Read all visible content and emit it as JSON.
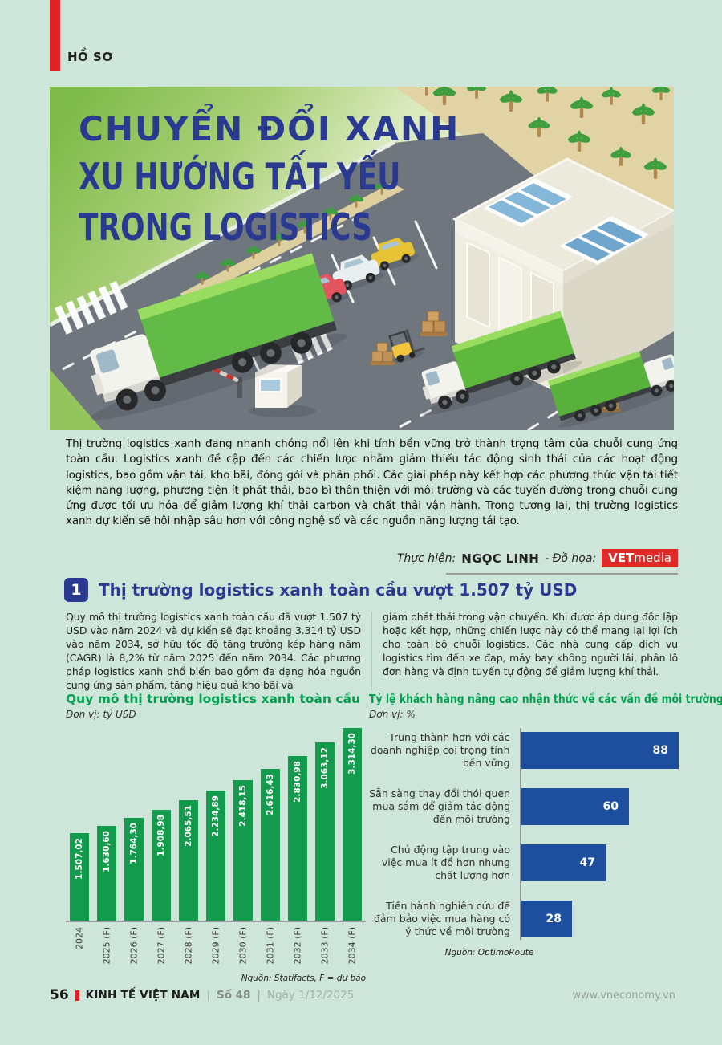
{
  "page": {
    "kicker": "HỒ SƠ",
    "background": "#cee5da"
  },
  "hero": {
    "title_line1": "CHUYỂN ĐỔI XANH",
    "title_line2": "XU HƯỚNG TẤT YẾU",
    "title_line3": "TRONG LOGISTICS",
    "parking_sign_label": "P"
  },
  "intro": {
    "text": "Thị trường logistics xanh đang nhanh chóng nổi lên khi tính bền vững trở thành trọng tâm của chuỗi cung ứng toàn cầu. Logistics xanh đề cập đến các chiến lược nhằm giảm thiểu tác động sinh thái của các hoạt động logistics, bao gồm vận tải, kho bãi, đóng gói và phân phối. Các giải pháp này kết hợp các phương thức vận tải tiết kiệm năng lượng, phương tiện ít phát thải, bao bì thân thiện với môi trường và các tuyến đường trong chuỗi cung ứng được tối ưu hóa để giảm lượng khí thải carbon và chất thải vận hành. Trong tương lai, thị trường logistics xanh dự kiến sẽ hội nhập sâu hơn với công nghệ số và các nguồn năng lượng tái tạo."
  },
  "byline": {
    "prefix": "Thực hiện:",
    "author": "NGỌC LINH",
    "graphics_prefix": "- Đồ họa:",
    "logo_bold": "VET",
    "logo_light": "media"
  },
  "section": {
    "number": "1",
    "title": "Thị trường logistics xanh toàn cầu vượt 1.507 tỷ USD"
  },
  "body": {
    "col1": "Quy mô thị trường logistics xanh toàn cầu đã vượt 1.507 tỷ USD vào năm 2024 và dự kiến sẽ đạt khoảng 3.314 tỷ USD vào năm 2034, sở hữu tốc độ tăng trưởng kép hàng năm (CAGR) là 8,2% từ năm 2025 đến năm 2034. Các phương pháp logistics xanh phổ biến bao gồm đa dạng hóa nguồn cung ứng sản phẩm, tăng hiệu quả kho bãi và",
    "col2": "giảm phát thải trong vận chuyển. Khi được áp dụng độc lập hoặc kết hợp, những chiến lược này có thể mang lại lợi ích cho toàn bộ chuỗi logistics. Các nhà cung cấp dịch vụ logistics tìm đến xe đạp, máy bay không người lái, phân lô đơn hàng và định tuyến tự động để giảm lượng khí thải."
  },
  "chart_data": [
    {
      "type": "bar",
      "title": "Quy mô thị trường logistics xanh toàn cầu",
      "unit_label": "Đơn vị: tỷ USD",
      "categories": [
        "2024",
        "2025 (F)",
        "2026 (F)",
        "2027 (F)",
        "2028 (F)",
        "2029 (F)",
        "2030 (F)",
        "2031 (F)",
        "2032 (F)",
        "2033 (F)",
        "2034 (F)"
      ],
      "values": [
        1507.02,
        1630.6,
        1764.3,
        1908.98,
        2065.51,
        2234.89,
        2418.15,
        2616.43,
        2830.98,
        3063.12,
        3314.3
      ],
      "value_labels": [
        "1.507,02",
        "1.630,60",
        "1.764,30",
        "1.908,98",
        "2.065,51",
        "2.234,89",
        "2.418,15",
        "2.616,43",
        "2.830,98",
        "3.063,12",
        "3.314,30"
      ],
      "bar_color": "#149a4c",
      "ylim": [
        0,
        3314.3
      ],
      "grid": false,
      "legend": "none",
      "source": "Nguồn: Statifacts, F = dự báo"
    },
    {
      "type": "bar-horizontal",
      "title": "Tỷ lệ khách hàng nâng cao nhận thức về các vấn đề môi trường",
      "unit_label": "Đơn vị: %",
      "categories": [
        "Trung thành hơn với các doanh nghiệp coi trọng tính bền vững",
        "Sẵn sàng thay đổi thói quen mua sắm để giảm tác động đến môi trường",
        "Chủ động tập trung vào việc mua ít đồ hơn nhưng chất lượng hơn",
        "Tiến hành nghiên cứu để đảm bảo việc mua hàng có ý thức về môi trường"
      ],
      "values": [
        88,
        60,
        47,
        28
      ],
      "bar_color": "#1e4f9e",
      "xlim": [
        0,
        100
      ],
      "grid": false,
      "legend": "none",
      "source": "Nguồn: OptimoRoute"
    }
  ],
  "footer": {
    "page_number": "56",
    "brand": "KINH TẾ VIỆT NAM",
    "separator": "|",
    "issue": "Số 48",
    "date": "Ngày 1/12/2025",
    "website": "www.vneconomy.vn"
  },
  "colors": {
    "accent_red": "#e01f26",
    "title_blue": "#2b3a91",
    "heading_green": "#00a24f",
    "bar_green": "#149a4c",
    "bar_blue": "#1e4f9e"
  }
}
